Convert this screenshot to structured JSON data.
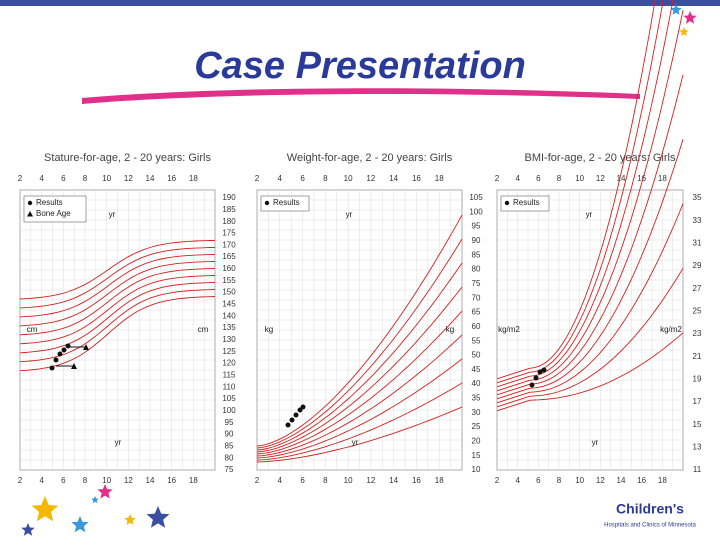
{
  "header": {
    "title": "Case Presentation"
  },
  "panels": [
    {
      "title": "Stature-for-age, 2 - 20 years: Girls",
      "xticks": [
        "2",
        "4",
        "6",
        "8",
        "10",
        "12",
        "14",
        "16",
        "18"
      ],
      "yticks": [
        "190",
        "185",
        "180",
        "175",
        "170",
        "165",
        "160",
        "155",
        "150",
        "145",
        "140",
        "135",
        "130",
        "125",
        "120",
        "115",
        "110",
        "105",
        "100",
        "95",
        "90",
        "85",
        "80",
        "75"
      ],
      "labels": [
        "yr",
        "cm",
        "cm",
        "yr"
      ],
      "legend": [
        "Results",
        "Bone Age"
      ]
    },
    {
      "title": "Weight-for-age, 2 - 20 years: Girls",
      "xticks": [
        "2",
        "4",
        "6",
        "8",
        "10",
        "12",
        "14",
        "16",
        "18"
      ],
      "yticks": [
        "105",
        "100",
        "95",
        "90",
        "85",
        "80",
        "75",
        "70",
        "65",
        "60",
        "55",
        "50",
        "45",
        "40",
        "35",
        "30",
        "25",
        "20",
        "15",
        "10"
      ],
      "labels": [
        "yr",
        "kg",
        "kg",
        "yr"
      ],
      "legend": [
        "Results"
      ]
    },
    {
      "title": "BMI-for-age, 2 - 20 years: Girls",
      "xticks": [
        "2",
        "4",
        "6",
        "8",
        "10",
        "12",
        "14",
        "16",
        "18"
      ],
      "yticks": [
        "35",
        "33",
        "31",
        "29",
        "27",
        "25",
        "23",
        "21",
        "19",
        "17",
        "15",
        "13",
        "11"
      ],
      "labels": [
        "yr",
        "kg/m2",
        "kg/m2",
        "yr"
      ],
      "legend": [
        "Results"
      ]
    }
  ],
  "logo": {
    "name": "Children's",
    "sub": "Hospitals and Clinics of Minnesota"
  }
}
